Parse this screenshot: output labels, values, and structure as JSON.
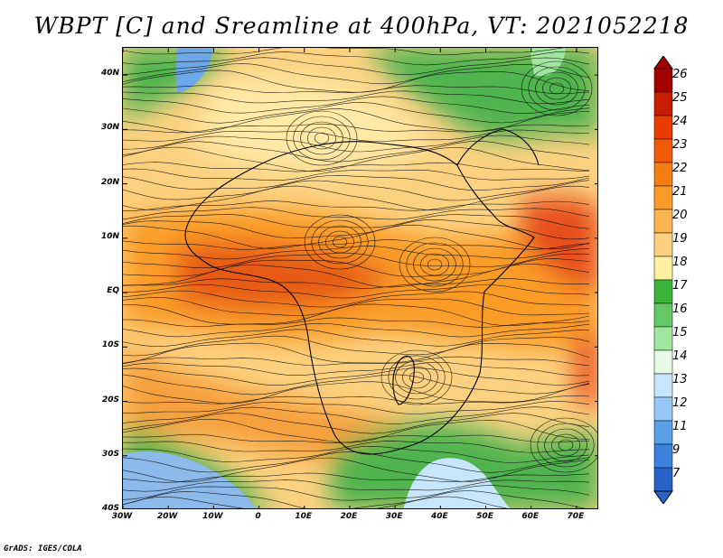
{
  "title": "WBPT [C] and Sreamline at 400hPa, VT: 2021052218",
  "credit": "GrADS: IGES/COLA",
  "map": {
    "lon_range": [
      -30,
      75
    ],
    "lat_range": [
      -40,
      45
    ],
    "lat_ticks": [
      {
        "value": 40,
        "label": "40N"
      },
      {
        "value": 30,
        "label": "30N"
      },
      {
        "value": 20,
        "label": "20N"
      },
      {
        "value": 10,
        "label": "10N"
      },
      {
        "value": 0,
        "label": "EQ"
      },
      {
        "value": -10,
        "label": "10S"
      },
      {
        "value": -20,
        "label": "20S"
      },
      {
        "value": -30,
        "label": "30S"
      },
      {
        "value": -40,
        "label": "40S"
      }
    ],
    "lon_ticks": [
      {
        "value": -30,
        "label": "30W"
      },
      {
        "value": -20,
        "label": "20W"
      },
      {
        "value": -10,
        "label": "10W"
      },
      {
        "value": 0,
        "label": "0"
      },
      {
        "value": 10,
        "label": "10E"
      },
      {
        "value": 20,
        "label": "20E"
      },
      {
        "value": 30,
        "label": "30E"
      },
      {
        "value": 40,
        "label": "40E"
      },
      {
        "value": 50,
        "label": "50E"
      },
      {
        "value": 60,
        "label": "60E"
      },
      {
        "value": 70,
        "label": "70E"
      }
    ]
  },
  "colorbar": {
    "levels": [
      "26",
      "25",
      "24",
      "23",
      "22",
      "21",
      "20",
      "19",
      "18",
      "17",
      "16",
      "15",
      "14",
      "13",
      "12",
      "11",
      "9",
      "7"
    ],
    "colors": [
      "#a50000",
      "#c81e00",
      "#e63c00",
      "#f05a0a",
      "#f57d14",
      "#fa9b28",
      "#fab450",
      "#fcd282",
      "#fff0a0",
      "#3cb43c",
      "#64c864",
      "#a0e6a0",
      "#e6fae6",
      "#c8e6fa",
      "#96c8f5",
      "#5aa0e6",
      "#3c82dc",
      "#2864c8"
    ]
  }
}
